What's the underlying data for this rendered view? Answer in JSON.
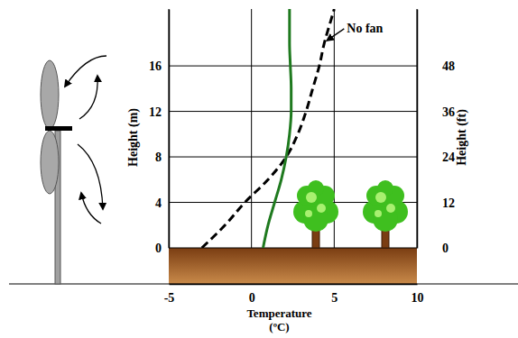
{
  "chart_data": {
    "type": "line",
    "xlabel": "Temperature (ºC)",
    "ylabel": "Height (m)",
    "y2label": "Height (ft)",
    "xlim": [
      -5,
      10
    ],
    "xticks": [
      -5,
      0,
      5,
      10
    ],
    "ylim": [
      0,
      21
    ],
    "yticks": [
      0,
      4,
      8,
      12,
      16
    ],
    "y2lim": [
      0,
      63
    ],
    "y2ticks": [
      0,
      12,
      24,
      36,
      48
    ],
    "grid": true,
    "series": [
      {
        "name": "No fan",
        "color": "#000000",
        "line_style": "dashed",
        "x": [
          -3,
          -1.6,
          -0.4,
          1.0,
          2.1,
          2.8,
          3.3,
          3.7,
          4.1,
          4.4,
          4.8,
          5.0
        ],
        "values": [
          0,
          2,
          4,
          6,
          8,
          10,
          12,
          14,
          16,
          18,
          20,
          21
        ]
      },
      {
        "color": "#1f7a1f",
        "line_style": "solid",
        "x": [
          0.7,
          1.0,
          1.4,
          1.8,
          2.1,
          2.3,
          2.4,
          2.4,
          2.35,
          2.3,
          2.3,
          2.3
        ],
        "values": [
          0,
          2,
          4,
          6,
          8,
          10,
          12,
          14,
          16,
          18,
          20,
          21
        ]
      }
    ]
  }
}
